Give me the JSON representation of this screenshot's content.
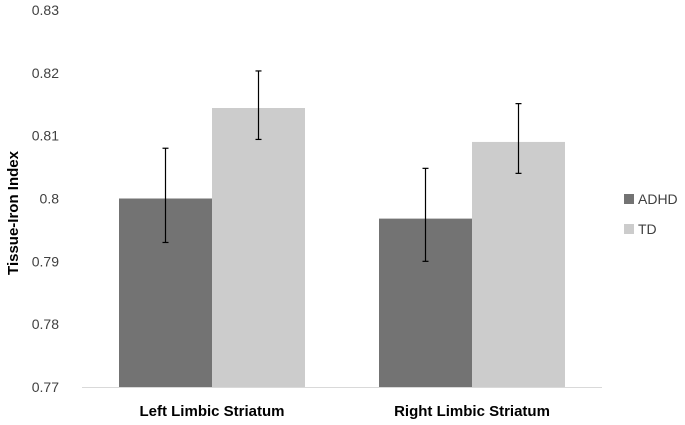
{
  "chart_data": {
    "type": "bar",
    "title": "",
    "xlabel": "",
    "ylabel": "Tissue-Iron Index",
    "ylim": [
      0.77,
      0.83
    ],
    "yticks": [
      0.77,
      0.78,
      0.79,
      0.8,
      0.81,
      0.82,
      0.83
    ],
    "ytick_labels": [
      "0.77",
      "0.78",
      "0.79",
      "0.8",
      "0.81",
      "0.82",
      "0.83"
    ],
    "categories": [
      "Left Limbic Striatum",
      "Right Limbic Striatum"
    ],
    "series": [
      {
        "name": "ADHD",
        "color": "#737373",
        "values": [
          0.8,
          0.7968
        ],
        "error_low": [
          0.793,
          0.79
        ],
        "error_high": [
          0.808,
          0.8048
        ]
      },
      {
        "name": "TD",
        "color": "#cccccc",
        "values": [
          0.8144,
          0.809
        ],
        "error_low": [
          0.8094,
          0.804
        ],
        "error_high": [
          0.8203,
          0.8151
        ]
      }
    ],
    "grid": false,
    "legend_position": "right"
  }
}
